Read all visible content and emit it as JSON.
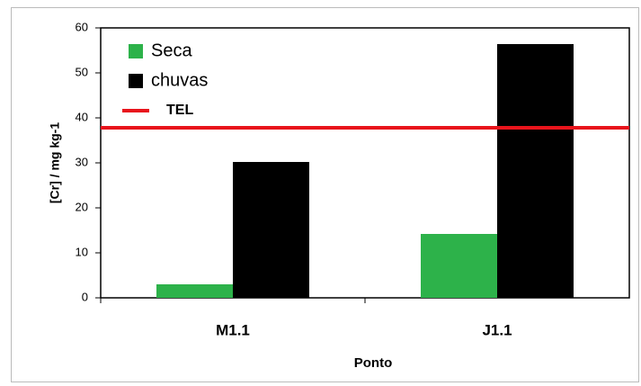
{
  "chart_data": {
    "type": "bar",
    "x_label": "Ponto",
    "y_label": "[Cr] / mg kg-1",
    "categories": [
      "M1.1",
      "J1.1"
    ],
    "series": [
      {
        "name": "Seca",
        "color": "#2db24a",
        "values": [
          3,
          14.2
        ]
      },
      {
        "name": "chuvas",
        "color": "#000000",
        "values": [
          30.2,
          56.4
        ]
      }
    ],
    "reference_line": {
      "name": "TEL",
      "value": 37.8,
      "color": "#e8141c"
    },
    "ylim": [
      0,
      60
    ],
    "yticks": [
      0,
      10,
      20,
      30,
      40,
      50,
      60
    ]
  }
}
